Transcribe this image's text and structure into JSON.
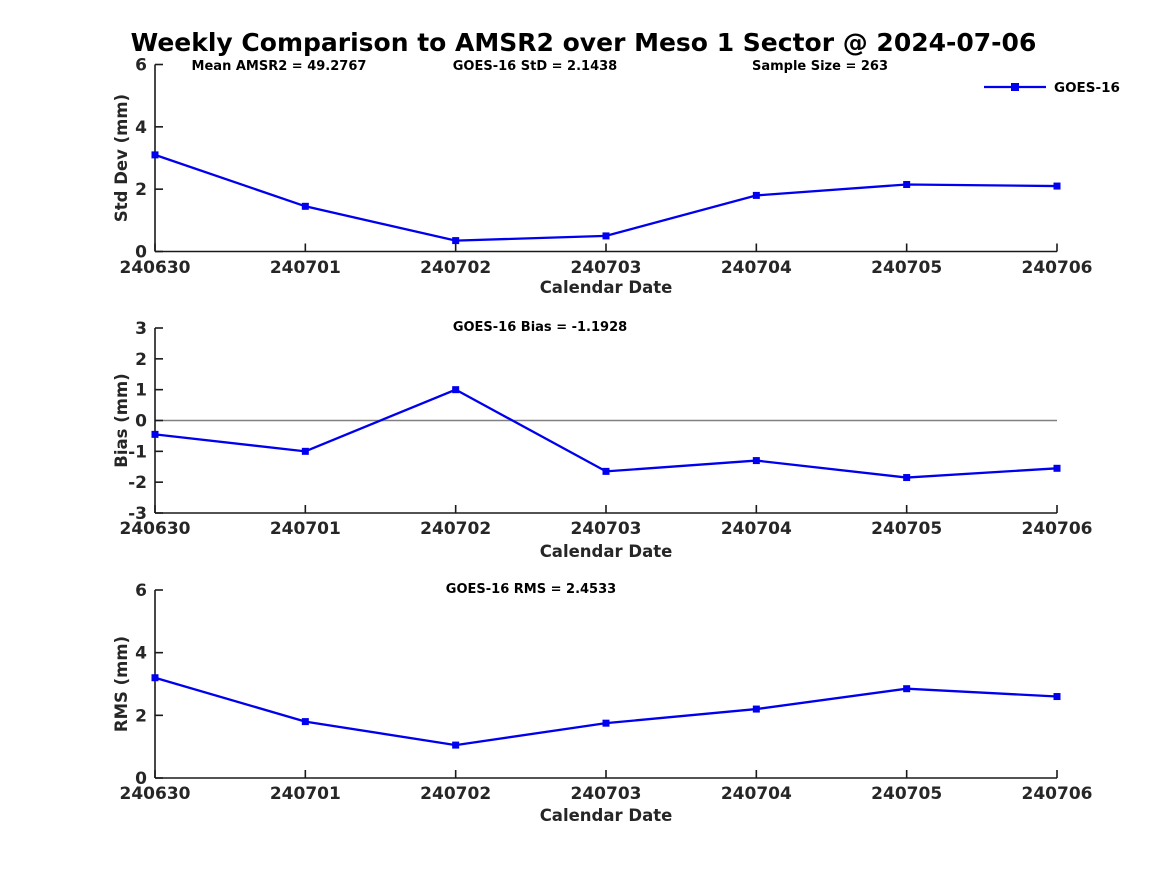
{
  "title": "Weekly Comparison to AMSR2 over Meso 1 Sector @ 2024-07-06",
  "legend": {
    "label": "GOES-16",
    "position": "top-right-outside"
  },
  "colors": {
    "line": "#0000EE",
    "axis": "#1a1a1a",
    "text": "#262626",
    "annotation": "#000000",
    "zero_line": "#808080",
    "background": "#ffffff"
  },
  "chart_data": [
    {
      "type": "line",
      "name": "std-dev",
      "series_name": "GOES-16",
      "categories": [
        "240630",
        "240701",
        "240702",
        "240703",
        "240704",
        "240705",
        "240706"
      ],
      "values": [
        3.1,
        1.45,
        0.35,
        0.5,
        1.8,
        2.15,
        2.1
      ],
      "xlabel": "Calendar Date",
      "ylabel": "Std Dev (mm)",
      "ylim": [
        0,
        6
      ],
      "yticks": [
        0,
        2,
        4,
        6
      ],
      "grid": false,
      "annotations": [
        "Mean AMSR2 = 49.2767",
        "GOES-16 StD = 2.1438",
        "Sample Size = 263"
      ],
      "stats": {
        "mean_amsr2": 49.2767,
        "goes16_std": 2.1438,
        "sample_size": 263
      }
    },
    {
      "type": "line",
      "name": "bias",
      "series_name": "GOES-16",
      "categories": [
        "240630",
        "240701",
        "240702",
        "240703",
        "240704",
        "240705",
        "240706"
      ],
      "values": [
        -0.45,
        -1.0,
        1.0,
        -1.65,
        -1.3,
        -1.85,
        -1.55
      ],
      "xlabel": "Calendar Date",
      "ylabel": "Bias (mm)",
      "ylim": [
        -3,
        3
      ],
      "yticks": [
        -3,
        -2,
        -1,
        0,
        1,
        2,
        3
      ],
      "grid": false,
      "zero_line": true,
      "annotations": [
        "GOES-16 Bias  = -1.1928"
      ],
      "stats": {
        "goes16_bias": -1.1928
      }
    },
    {
      "type": "line",
      "name": "rms",
      "series_name": "GOES-16",
      "categories": [
        "240630",
        "240701",
        "240702",
        "240703",
        "240704",
        "240705",
        "240706"
      ],
      "values": [
        3.2,
        1.8,
        1.05,
        1.75,
        2.2,
        2.85,
        2.6
      ],
      "xlabel": "Calendar Date",
      "ylabel": "RMS (mm)",
      "ylim": [
        0,
        6
      ],
      "yticks": [
        0,
        2,
        4,
        6
      ],
      "grid": false,
      "annotations": [
        "GOES-16 RMS = 2.4533"
      ],
      "stats": {
        "goes16_rms": 2.4533
      }
    }
  ]
}
